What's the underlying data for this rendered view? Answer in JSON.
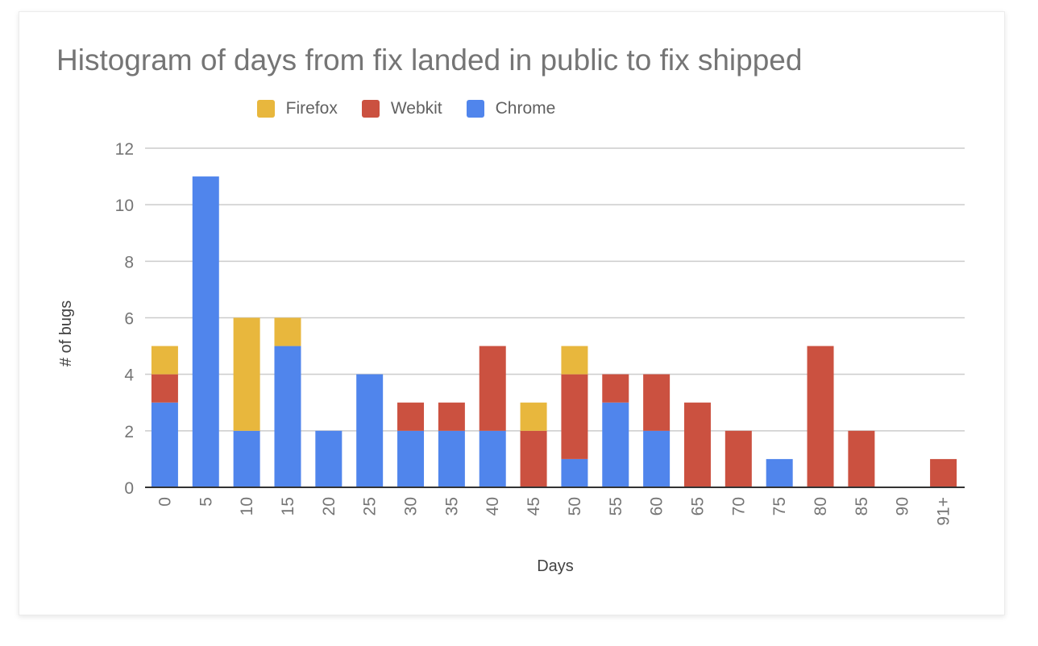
{
  "chart_data": {
    "type": "bar",
    "stacked": true,
    "title": "Histogram of days from fix landed in public to fix shipped",
    "xlabel": "Days",
    "ylabel": "# of bugs",
    "ylim": [
      0,
      12
    ],
    "yticks": [
      0,
      2,
      4,
      6,
      8,
      10,
      12
    ],
    "grid": true,
    "legend_position": "top",
    "categories": [
      "0",
      "5",
      "10",
      "15",
      "20",
      "25",
      "30",
      "35",
      "40",
      "45",
      "50",
      "55",
      "60",
      "65",
      "70",
      "75",
      "80",
      "85",
      "90",
      "91+"
    ],
    "series": [
      {
        "name": "Chrome",
        "color": "#5085ec",
        "values": [
          3,
          11,
          2,
          5,
          2,
          4,
          2,
          2,
          2,
          0,
          1,
          3,
          2,
          0,
          0,
          1,
          0,
          0,
          0,
          0
        ]
      },
      {
        "name": "Webkit",
        "color": "#cb5140",
        "values": [
          1,
          0,
          0,
          0,
          0,
          0,
          1,
          1,
          3,
          2,
          3,
          1,
          2,
          3,
          2,
          0,
          5,
          2,
          0,
          1
        ]
      },
      {
        "name": "Firefox",
        "color": "#e8b73d",
        "values": [
          1,
          0,
          4,
          1,
          0,
          0,
          0,
          0,
          0,
          1,
          1,
          0,
          0,
          0,
          0,
          0,
          0,
          0,
          0,
          0
        ]
      }
    ]
  },
  "legend": [
    {
      "label": "Firefox",
      "color": "#e8b73d"
    },
    {
      "label": "Webkit",
      "color": "#cb5140"
    },
    {
      "label": "Chrome",
      "color": "#5085ec"
    }
  ]
}
